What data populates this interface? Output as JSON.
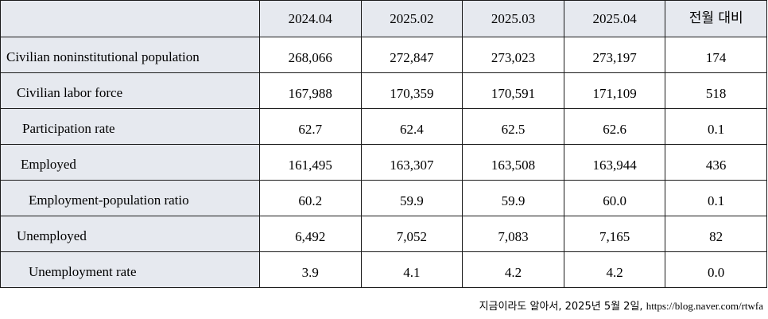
{
  "table": {
    "columns": [
      "2024.04",
      "2025.02",
      "2025.03",
      "2025.04",
      "전월 대비"
    ],
    "rows": [
      {
        "label": "Civilian noninstitutional population",
        "values": [
          "268,066",
          "272,847",
          "273,023",
          "273,197",
          "174"
        ]
      },
      {
        "label": "Civilian labor force",
        "values": [
          "167,988",
          "170,359",
          "170,591",
          "171,109",
          "518"
        ]
      },
      {
        "label": "Participation rate",
        "values": [
          "62.7",
          "62.4",
          "62.5",
          "62.6",
          "0.1"
        ]
      },
      {
        "label": "Employed",
        "values": [
          "161,495",
          "163,307",
          "163,508",
          "163,944",
          "436"
        ]
      },
      {
        "label": "Employment-population ratio",
        "values": [
          "60.2",
          "59.9",
          "59.9",
          "60.0",
          "0.1"
        ]
      },
      {
        "label": "Unemployed",
        "values": [
          "6,492",
          "7,052",
          "7,083",
          "7,165",
          "82"
        ]
      },
      {
        "label": "Unemployment rate",
        "values": [
          "3.9",
          "4.1",
          "4.2",
          "4.2",
          "0.0"
        ]
      }
    ]
  },
  "source": {
    "text": "지금이라도 알아서, 2025년 5월 2일,",
    "url": "https://blog.naver.com/rtwfa"
  }
}
